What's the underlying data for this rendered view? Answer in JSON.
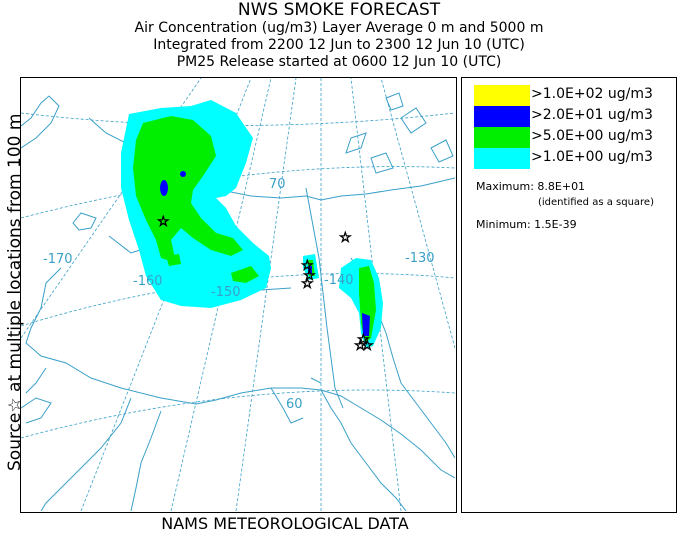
{
  "header": {
    "title": "NWS SMOKE FORECAST",
    "line2": "Air Concentration (ug/m3) Layer Average    0 m and  5000 m",
    "line3": "Integrated from 2200 12 Jun to 2300 12 Jun 10 (UTC)",
    "line4": "PM25 Release started at 0600 12 Jun 10 (UTC)"
  },
  "side_label": "Source☆   at multiple locations   from  100 m",
  "footer": "NAMS METEOROLOGICAL DATA",
  "map": {
    "lon_labels": [
      "-170",
      "-160",
      "-150",
      "-140",
      "-130"
    ],
    "lat_labels": [
      "70",
      "60"
    ],
    "colors": {
      "coast": "#3aa0c8",
      "grid": "#3aa0c8",
      "border": "#3aa0c8"
    }
  },
  "legend": {
    "items": [
      {
        "label": ">1.0E+02 ug/m3",
        "color": "#ffff00"
      },
      {
        "label": ">2.0E+01 ug/m3",
        "color": "#0000ff"
      },
      {
        "label": ">5.0E+00 ug/m3",
        "color": "#00ee00"
      },
      {
        "label": ">1.0E+00 ug/m3",
        "color": "#00ffff"
      }
    ],
    "maximum": "Maximum: 8.8E+01",
    "max_note": "(identified as a square)",
    "minimum": "Minimum: 1.5E-39"
  }
}
